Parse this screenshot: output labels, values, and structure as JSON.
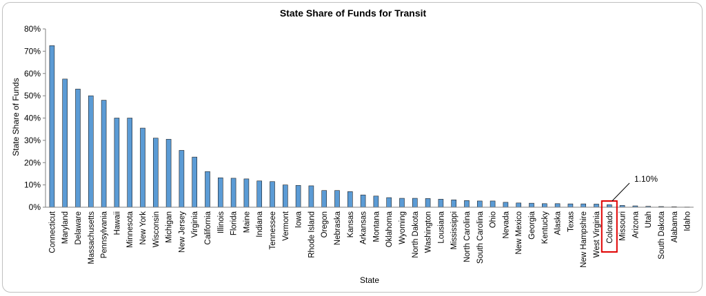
{
  "chart_data": {
    "type": "bar",
    "title": "State Share of Funds for Transit",
    "xlabel": "State",
    "ylabel": "State Share of Funds",
    "ylim": [
      0,
      80
    ],
    "yticks": [
      "0%",
      "10%",
      "20%",
      "30%",
      "40%",
      "50%",
      "60%",
      "70%",
      "80%"
    ],
    "grid": false,
    "bar_color": "#5b9bd5",
    "highlight_color": "#e00000",
    "categories": [
      "Connecticut",
      "Maryland",
      "Delaware",
      "Massachusetts",
      "Pennsylvania",
      "Hawaii",
      "Minnesota",
      "New York",
      "Wisconsin",
      "Michigan",
      "New Jersey",
      "Virginia",
      "California",
      "Illinois",
      "Florida",
      "Maine",
      "Indiana",
      "Tennessee",
      "Vermont",
      "Iowa",
      "Rhode Island",
      "Oregon",
      "Nebraska",
      "Kansas",
      "Arkansas",
      "Montana",
      "Oklahoma",
      "Wyoming",
      "North Dakota",
      "Washington",
      "Lousiana",
      "Mississippi",
      "North Carolina",
      "South Carolina",
      "Ohio",
      "Nevada",
      "New Mexico",
      "Georgia",
      "Kentucky",
      "Alaska",
      "Texas",
      "New Hampshire",
      "West Virginia",
      "Colorado",
      "Missouri",
      "Arizona",
      "Utah",
      "South Dakota",
      "Alabama",
      "Idaho"
    ],
    "values": [
      72.5,
      57.5,
      53,
      50,
      48,
      40,
      40,
      35.5,
      31,
      30.5,
      25.5,
      22.5,
      16,
      13.2,
      13,
      12.7,
      11.8,
      11.5,
      10,
      9.8,
      9.6,
      7.5,
      7.5,
      7,
      5.5,
      5,
      4.3,
      4,
      4,
      3.9,
      3.6,
      3.3,
      3,
      2.8,
      2.8,
      2.2,
      1.9,
      1.8,
      1.6,
      1.6,
      1.5,
      1.5,
      1.4,
      1.1,
      0.8,
      0.6,
      0.4,
      0.3,
      0.2,
      0.1
    ],
    "highlight": {
      "category": "Colorado",
      "label": "1.10%"
    }
  }
}
